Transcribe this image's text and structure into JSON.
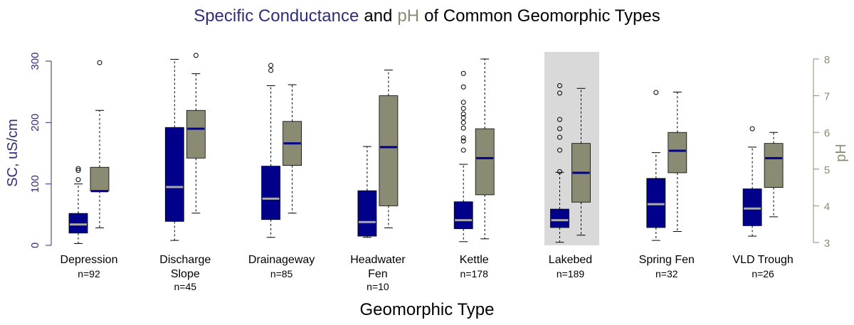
{
  "chart_data": {
    "type": "box",
    "title": [
      "Specific Conductance",
      "and",
      "pH",
      "of Common Geomorphic Types"
    ],
    "title_colors": [
      "#2e2e7a",
      "#000000",
      "#8b8b74",
      "#000000"
    ],
    "xlabel": "Geomorphic Type",
    "ylabel": "SC, uS/cm",
    "y2label": "pH",
    "ylabel_color": "#2e2e7a",
    "y2label_color": "#8b8b74",
    "categories": [
      [
        "Depression"
      ],
      [
        "Discharge",
        "Slope"
      ],
      [
        "Drainageway"
      ],
      [
        "Headwater",
        "Fen"
      ],
      [
        "Kettle"
      ],
      [
        "Lakebed"
      ],
      [
        "Spring Fen"
      ],
      [
        "VLD Trough"
      ]
    ],
    "n_labels": [
      "n=92",
      "n=45",
      "n=85",
      "n=10",
      "n=178",
      "n=189",
      "n=32",
      "n=26"
    ],
    "ylim": [
      0,
      300
    ],
    "yticks": [
      0,
      100,
      200,
      300
    ],
    "y2lim": [
      3,
      8
    ],
    "y2ticks": [
      3,
      4,
      5,
      6,
      7,
      8
    ],
    "series": [
      {
        "axis": "y",
        "color": "#00008b",
        "median_color": "#aaaaaa",
        "min": [
          3,
          8,
          13,
          13,
          6,
          5,
          8,
          15
        ],
        "q1": [
          20,
          39,
          42,
          15,
          27,
          29,
          29,
          32
        ],
        "median": [
          34,
          95,
          76,
          38,
          41,
          41,
          67,
          60
        ],
        "q3": [
          52,
          192,
          129,
          89,
          71,
          59,
          109,
          92
        ],
        "max": [
          100,
          303,
          260,
          161,
          132,
          119,
          151,
          160
        ],
        "outliers": [
          [
            125,
            122,
            107
          ],
          [],
          [
            293,
            285
          ],
          [],
          [
            280,
            258,
            233,
            223,
            214,
            208,
            200,
            191,
            175,
            170,
            155
          ],
          [
            260,
            248,
            205,
            190,
            176,
            155,
            120
          ],
          [
            249
          ],
          [
            190
          ]
        ]
      },
      {
        "axis": "y2",
        "color": "#8b8b74",
        "median_color": "#00008b",
        "min": [
          3.4,
          3.8,
          3.8,
          3.4,
          3.1,
          3.2,
          3.3,
          3.7
        ],
        "q1": [
          4.4,
          5.3,
          5.1,
          4.0,
          4.3,
          4.1,
          4.9,
          4.5
        ],
        "median": [
          4.4,
          6.1,
          5.7,
          5.6,
          5.3,
          4.9,
          5.5,
          5.3
        ],
        "q3": [
          5.05,
          6.6,
          6.3,
          7.0,
          6.1,
          5.7,
          6.0,
          5.7
        ],
        "max": [
          6.6,
          7.6,
          7.3,
          7.7,
          8.0,
          7.2,
          7.1,
          6.0
        ],
        "outliers": [
          [
            7.9
          ],
          [
            8.1
          ],
          [],
          [],
          [],
          [],
          [],
          []
        ]
      }
    ]
  }
}
